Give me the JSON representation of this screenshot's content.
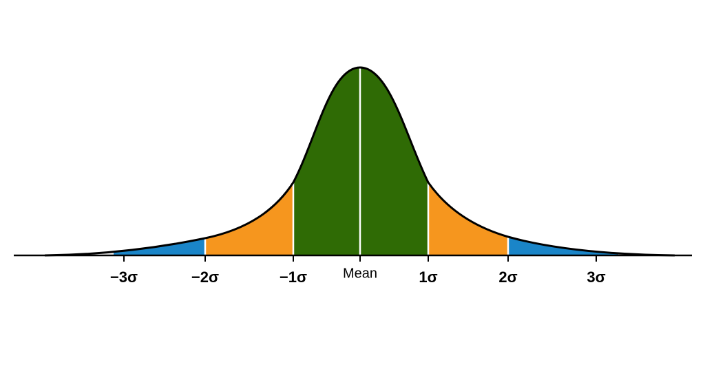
{
  "axis_labels": [
    "−3σ",
    "−2σ",
    "−1σ",
    "Mean",
    "1σ",
    "2σ",
    "3σ"
  ]
}
